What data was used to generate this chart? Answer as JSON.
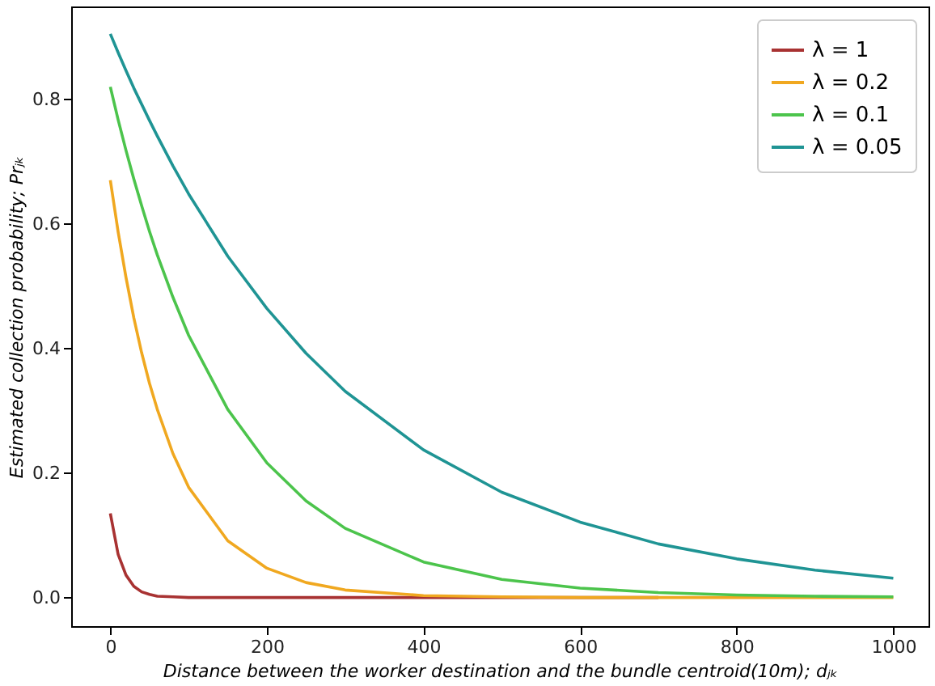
{
  "chart_data": {
    "type": "line",
    "xlabel": "Distance between the worker destination and the bundle centroid(10m); dⱼₖ",
    "ylabel": "Estimated collection probability; Prⱼₖ",
    "x": [
      0,
      10,
      20,
      30,
      40,
      50,
      60,
      80,
      100,
      150,
      200,
      250,
      300,
      400,
      500,
      600,
      700,
      800,
      900,
      1000
    ],
    "series": [
      {
        "name": "λ = 1",
        "color": "#a83232",
        "values": [
          0.135,
          0.069,
          0.036,
          0.018,
          0.009,
          0.005,
          0.002,
          0.001,
          0,
          0,
          0,
          0,
          0,
          0,
          0,
          0,
          0,
          null,
          null,
          null
        ]
      },
      {
        "name": "λ = 0.2",
        "color": "#f0a820",
        "values": [
          0.67,
          0.587,
          0.514,
          0.449,
          0.393,
          0.344,
          0.302,
          0.231,
          0.177,
          0.091,
          0.047,
          0.024,
          0.012,
          0.003,
          0.001,
          0,
          0,
          0,
          0,
          0
        ]
      },
      {
        "name": "λ = 0.1",
        "color": "#4cc44c",
        "values": [
          0.82,
          0.767,
          0.718,
          0.672,
          0.629,
          0.588,
          0.55,
          0.482,
          0.421,
          0.302,
          0.216,
          0.155,
          0.111,
          0.057,
          0.029,
          0.015,
          0.008,
          0.004,
          0.002,
          0.001
        ]
      },
      {
        "name": "λ = 0.05",
        "color": "#1f9494",
        "values": [
          0.905,
          0.875,
          0.846,
          0.818,
          0.792,
          0.766,
          0.741,
          0.693,
          0.648,
          0.548,
          0.464,
          0.392,
          0.331,
          0.237,
          0.169,
          0.121,
          0.086,
          0.062,
          0.044,
          0.031
        ]
      }
    ],
    "xlim": [
      -50,
      1045
    ],
    "xticks": [
      0,
      200,
      400,
      600,
      800,
      1000
    ],
    "ylim": [
      -0.046,
      0.949
    ],
    "yticks": [
      {
        "value": 0,
        "label": "0.0"
      },
      0.2,
      0.4,
      0.6,
      0.8
    ],
    "grid": false,
    "legend": "top right",
    "line_style": "solid",
    "marker": "none"
  }
}
